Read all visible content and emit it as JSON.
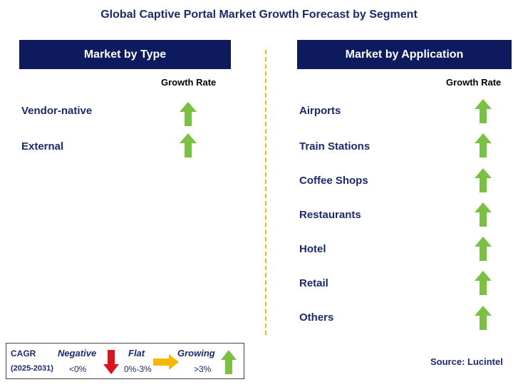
{
  "title": "Global Captive Portal Market Growth Forecast by Segment",
  "left_panel": {
    "header": "Market by Type",
    "growth_rate_label": "Growth Rate",
    "items": [
      {
        "label": "Vendor-native",
        "trend": "growing"
      },
      {
        "label": "External",
        "trend": "growing"
      }
    ]
  },
  "right_panel": {
    "header": "Market by Application",
    "growth_rate_label": "Growth Rate",
    "items": [
      {
        "label": "Airports",
        "trend": "growing"
      },
      {
        "label": "Train Stations",
        "trend": "growing"
      },
      {
        "label": "Coffee Shops",
        "trend": "growing"
      },
      {
        "label": "Restaurants",
        "trend": "growing"
      },
      {
        "label": "Hotel",
        "trend": "growing"
      },
      {
        "label": "Retail",
        "trend": "growing"
      },
      {
        "label": "Others",
        "trend": "growing"
      }
    ]
  },
  "legend": {
    "cagr_label": "CAGR",
    "period": "(2025-2031)",
    "negative_label": "Negative",
    "negative_value": "<0%",
    "flat_label": "Flat",
    "flat_value": "0%-3%",
    "growing_label": "Growing",
    "growing_value": ">3%"
  },
  "source": "Source: Lucintel",
  "colors": {
    "header_bg": "#0d1b5e",
    "text": "#1b2a6b",
    "growing_arrow": "#7ac143",
    "negative_arrow": "#d9141b",
    "flat_arrow": "#f5b800",
    "divider": "#f5b800"
  }
}
